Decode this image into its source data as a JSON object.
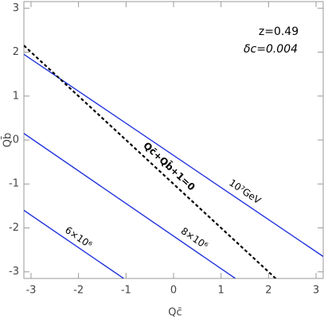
{
  "chart_data": {
    "type": "line",
    "xlabel": "Qc̄",
    "ylabel": "Qb̄",
    "annotations": [
      "z=0.49",
      "δc=0.004"
    ],
    "xlim": [
      -3.15,
      3.15
    ],
    "ylim": [
      -3.15,
      3.15
    ],
    "xticks": [
      -3,
      -2,
      -1,
      0,
      1,
      2,
      3
    ],
    "yticks": [
      -3,
      -2,
      -1,
      0,
      1,
      2,
      3
    ],
    "series": [
      {
        "name": "10⁷GeV",
        "color": "#2233dd",
        "style": "solid",
        "x": [
          -3.15,
          3.15
        ],
        "y": [
          1.95,
          -2.65
        ]
      },
      {
        "name": "8×10⁶",
        "color": "#2233dd",
        "style": "solid",
        "x": [
          -3.15,
          1.3
        ],
        "y": [
          0.15,
          -3.15
        ]
      },
      {
        "name": "6×10⁶",
        "color": "#2233dd",
        "style": "solid",
        "x": [
          -3.15,
          -1.05
        ],
        "y": [
          -1.6,
          -3.15
        ]
      },
      {
        "name": "Qc̄+Qb̄+1=0",
        "color": "#000000",
        "style": "dashed",
        "x": [
          -3.15,
          2.15
        ],
        "y": [
          2.15,
          -3.15
        ]
      }
    ]
  }
}
